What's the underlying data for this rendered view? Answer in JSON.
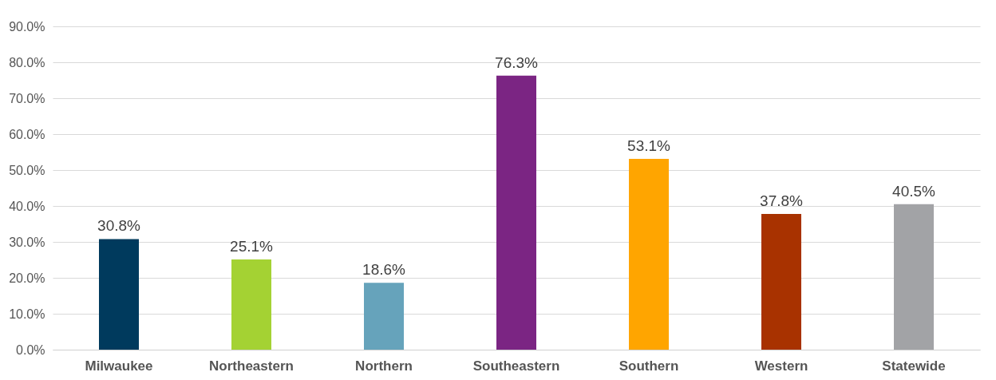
{
  "chart_data": {
    "type": "bar",
    "categories": [
      "Milwaukee",
      "Northeastern",
      "Northern",
      "Southeastern",
      "Southern",
      "Western",
      "Statewide"
    ],
    "values": [
      30.8,
      25.1,
      18.6,
      76.3,
      53.1,
      37.8,
      40.5
    ],
    "colors": [
      "#003a5d",
      "#a4d233",
      "#66a3bb",
      "#7b2583",
      "#ffa500",
      "#a83200",
      "#a2a3a6"
    ],
    "value_labels": [
      "30.8%",
      "25.1%",
      "18.6%",
      "76.3%",
      "53.1%",
      "37.8%",
      "40.5%"
    ],
    "ylim": [
      0,
      90
    ],
    "yticks": [
      {
        "value": 0,
        "label": "0.0%"
      },
      {
        "value": 10,
        "label": "10.0%"
      },
      {
        "value": 20,
        "label": "20.0%"
      },
      {
        "value": 30,
        "label": "30.0%"
      },
      {
        "value": 40,
        "label": "40.0%"
      },
      {
        "value": 50,
        "label": "50.0%"
      },
      {
        "value": 60,
        "label": "60.0%"
      },
      {
        "value": 70,
        "label": "70.0%"
      },
      {
        "value": 80,
        "label": "80.0%"
      },
      {
        "value": 90,
        "label": "90.0%"
      }
    ],
    "grid": "y"
  }
}
